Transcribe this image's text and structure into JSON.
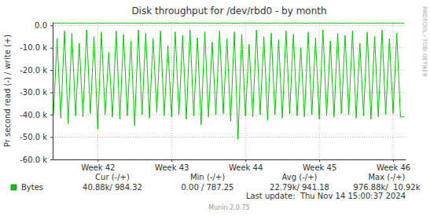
{
  "chart_data": {
    "type": "line",
    "title": "Disk throughput for /dev/rbd0 - by month",
    "y_label": "Pr second read (-) / write (+)",
    "x": [
      41.4,
      41.45,
      41.5,
      41.55,
      41.6,
      41.65,
      41.7,
      41.75,
      41.8,
      41.85,
      41.9,
      41.95,
      42,
      42.05,
      42.1,
      42.15,
      42.2,
      42.25,
      42.3,
      42.35,
      42.4,
      42.45,
      42.5,
      42.55,
      42.6,
      42.65,
      42.7,
      42.75,
      42.8,
      42.85,
      42.9,
      42.95,
      43,
      43.05,
      43.1,
      43.15,
      43.2,
      43.25,
      43.3,
      43.35,
      43.4,
      43.45,
      43.5,
      43.55,
      43.6,
      43.65,
      43.7,
      43.75,
      43.8,
      43.85,
      43.9,
      43.95,
      44,
      44.05,
      44.1,
      44.15,
      44.2,
      44.25,
      44.3,
      44.35,
      44.4,
      44.45,
      44.5,
      44.55,
      44.6,
      44.65,
      44.7,
      44.75,
      44.8,
      44.85,
      44.9,
      44.95,
      45,
      45.05,
      45.1,
      45.15,
      45.2,
      45.25,
      45.3,
      45.35,
      45.4,
      45.45,
      45.5,
      45.55,
      45.6,
      45.65,
      45.7,
      45.75,
      45.8,
      45.85,
      45.9,
      45.95,
      46,
      46.05,
      46.1,
      46.15
    ],
    "series": [
      {
        "name": "Bytes",
        "color": "#00cc00",
        "values": [
          -40000,
          -6000,
          -41500,
          -2500,
          -44000,
          -3500,
          -40500,
          -8000,
          -41000,
          -2000,
          -39500,
          -5000,
          -46500,
          -3000,
          -40000,
          -12000,
          -41000,
          -2500,
          -42000,
          -4000,
          -40500,
          -7000,
          -45000,
          -2000,
          -40000,
          -3500,
          -41500,
          -6000,
          -39000,
          -2500,
          -40500,
          -9000,
          -41000,
          -3000,
          -40000,
          -4500,
          -42000,
          -2000,
          -40500,
          -5500,
          -44500,
          -3000,
          -41000,
          -7500,
          -40000,
          -2500,
          -39500,
          -6000,
          -43000,
          -3000,
          -51000,
          -4000,
          -40500,
          -8500,
          -41000,
          -2000,
          -40000,
          -5000,
          -42500,
          -3500,
          -40000,
          -6500,
          -41500,
          -2500,
          -39500,
          -4000,
          -40500,
          -10000,
          -41000,
          -3000,
          -40000,
          -5500,
          -42000,
          -2000,
          -40500,
          -7000,
          -41000,
          -3500,
          -39500,
          -4500,
          -40000,
          -2500,
          -41500,
          -8000,
          -40500,
          -3000,
          -42000,
          -5000,
          -41000,
          -2000,
          -40000,
          -6000,
          -39500,
          -3500,
          -41000,
          -40880
        ]
      },
      {
        "color": "#00cc00",
        "values": [
          980,
          1010,
          950,
          1040,
          990,
          960,
          1020,
          1000,
          970,
          1030,
          940,
          990,
          1010,
          960,
          1000,
          980,
          1050,
          970,
          990,
          1020,
          950,
          1000,
          980,
          1010,
          960,
          1030,
          990,
          970,
          1000,
          1040,
          950,
          980,
          1010,
          990,
          960,
          1020,
          1000,
          970,
          1060,
          980,
          950,
          1010,
          990,
          1030,
          960,
          1000,
          980,
          1020,
          990,
          950,
          1010,
          980,
          1040,
          960,
          1000,
          970,
          1020,
          990,
          950,
          1010,
          980,
          1030,
          960,
          1000,
          990,
          1020,
          970,
          1010,
          950,
          990,
          1040,
          980,
          1000,
          960,
          1020,
          980,
          990,
          1010,
          950,
          1000,
          970,
          1030,
          990,
          960,
          1010,
          980,
          1000,
          950,
          1020,
          990,
          970,
          1010,
          980,
          960,
          1000,
          984.32
        ]
      }
    ],
    "xlim": [
      41.39,
      46.17
    ],
    "xticks": [
      {
        "value": 42,
        "label": "Week 42"
      },
      {
        "value": 43,
        "label": "Week 43"
      },
      {
        "value": 44,
        "label": "Week 44"
      },
      {
        "value": 45,
        "label": "Week 45"
      },
      {
        "value": 46,
        "label": "Week 46"
      }
    ],
    "ylim": [
      -60000,
      1500
    ],
    "yticks": [
      {
        "value": 0,
        "label": "0.0"
      },
      {
        "value": -10000,
        "label": "-10.0 k"
      },
      {
        "value": -20000,
        "label": "-20.0 k"
      },
      {
        "value": -30000,
        "label": "-30.0 k"
      },
      {
        "value": -40000,
        "label": "-40.0 k"
      },
      {
        "value": -50000,
        "label": "-50.0 k"
      },
      {
        "value": -60000,
        "label": "-60.0 k"
      }
    ],
    "grid": true,
    "legend": "bottom",
    "legend_stats": {
      "headers": [
        "Cur (-/+)",
        "Min (-/+)",
        "Avg (-/+)",
        "Max (-/+)"
      ],
      "values": [
        "40.88k/ 984.32",
        "0.00 / 787.25",
        "22.79k/ 941.18",
        "976.88k/  10.92k"
      ]
    },
    "last_update": "Last update:  Thu Nov 14 15:00:37 2024",
    "credit": "Munin 2.0.75",
    "watermark": "RRDTOOL / TOBI OETIKER"
  }
}
